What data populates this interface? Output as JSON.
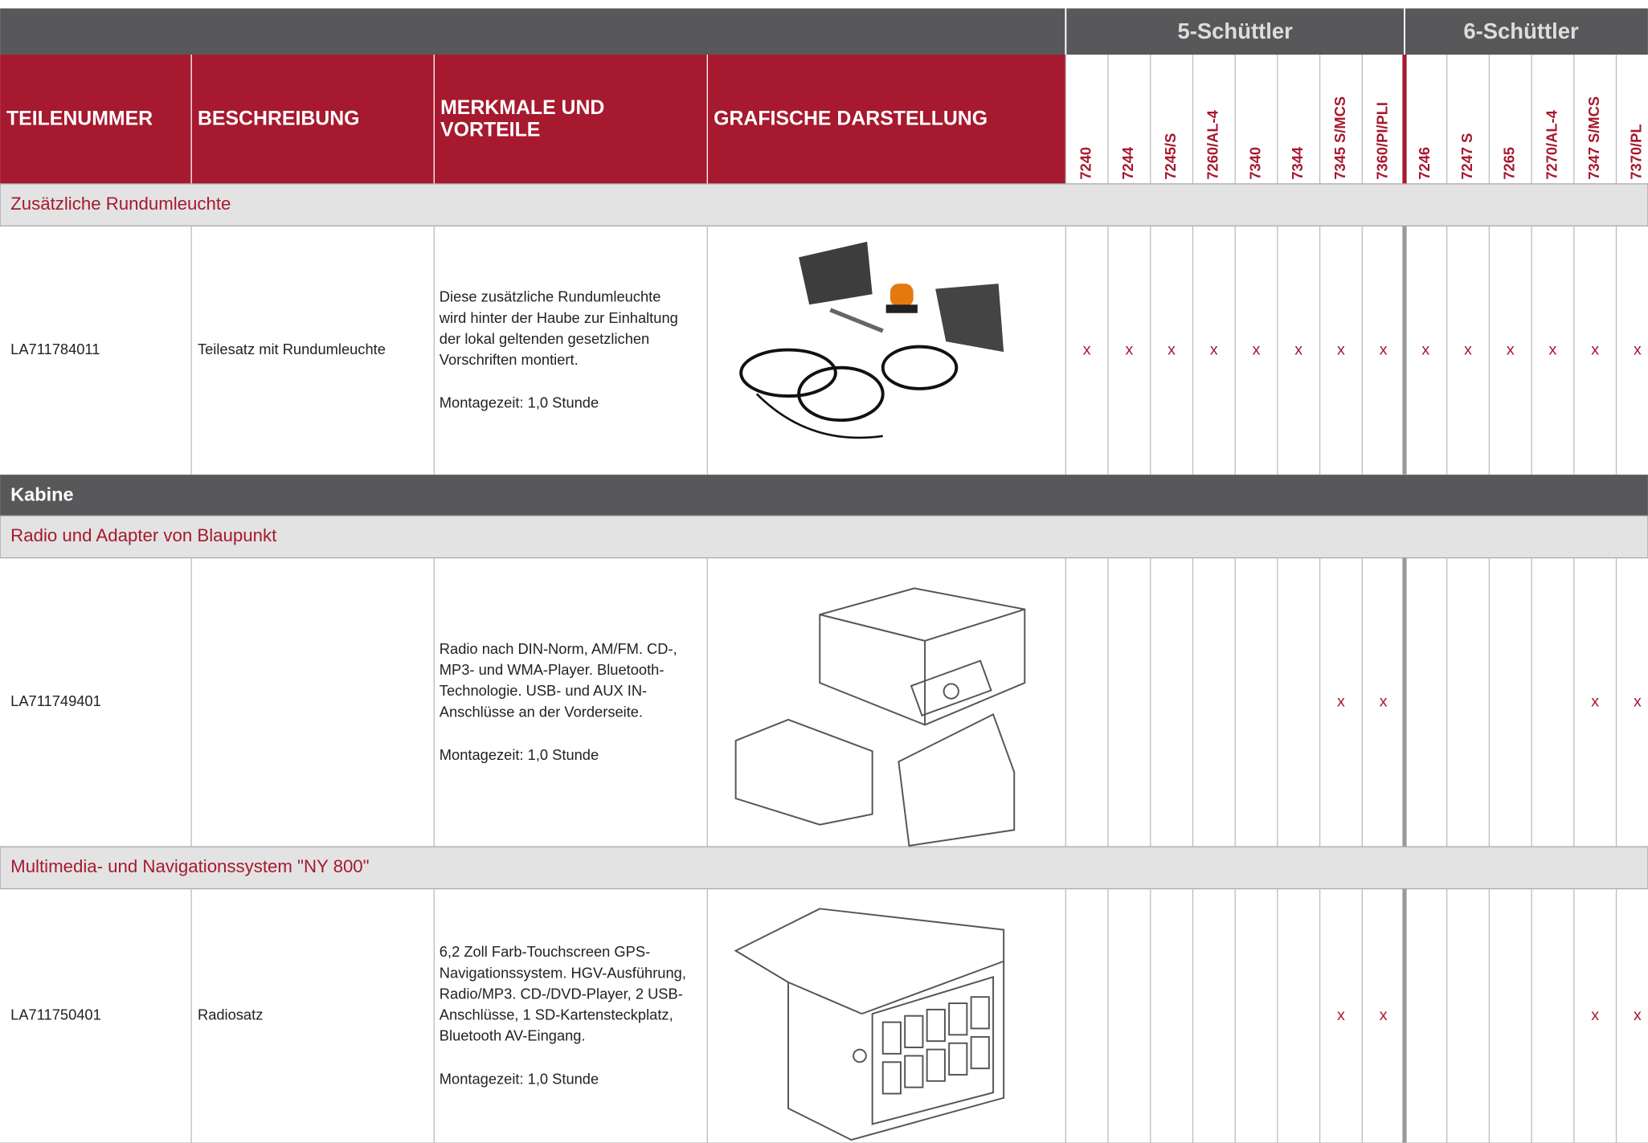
{
  "header": {
    "groups": [
      "5-Schüttler",
      "6-Schüttler"
    ],
    "columns": [
      [
        "TEILENUMMER"
      ],
      [
        "BESCHREIBUNG"
      ],
      [
        "MERKMALE UND",
        "VORTEILE"
      ],
      [
        "GRAFISCHE DARSTELLUNG"
      ]
    ],
    "models": [
      "7240",
      "7244",
      "7245/S",
      "7260/AL-4",
      "7340",
      "7344",
      "7345 S/MCS",
      "7360/PI/PLI",
      "7246",
      "7247 S",
      "7265",
      "7270/AL-4",
      "7347 S/MCS",
      "7370/PL"
    ]
  },
  "blocks": [
    {
      "subheading": "Zusätzliche Rundumleuchte"
    },
    {
      "row": {
        "part": "LA711784011",
        "description": "Teilesatz mit Rundumleuchte",
        "features": [
          "Diese zusätzliche Rundumleuchte",
          "wird hinter der Haube zur Einhaltung",
          "der lokal geltenden gesetzlichen",
          "Vorschriften montiert."
        ],
        "time": "Montagezeit: 1,0 Stunde",
        "marks": [
          "x",
          "x",
          "x",
          "x",
          "x",
          "x",
          "x",
          "x",
          "x",
          "x",
          "x",
          "x",
          "x",
          "x"
        ]
      }
    },
    {
      "heading": "Kabine"
    },
    {
      "subheading": "Radio und Adapter von Blaupunkt"
    },
    {
      "row": {
        "part": "LA711749401",
        "description": null,
        "features": [
          "Radio nach DIN-Norm, AM/FM. CD-,",
          "MP3- und WMA-Player. Bluetooth-",
          "Technologie. USB- und AUX IN-",
          "Anschlüsse an der Vorderseite."
        ],
        "time": "Montagezeit: 1,0 Stunde",
        "marks": [
          null,
          null,
          null,
          null,
          null,
          null,
          "x",
          "x",
          null,
          null,
          null,
          null,
          "x",
          "x"
        ]
      }
    },
    {
      "subheading": "Multimedia- und Navigationssystem \"NY 800\""
    },
    {
      "row": {
        "part": "LA711750401",
        "description": "Radiosatz",
        "features": [
          "6,2 Zoll Farb-Touchscreen GPS-",
          "Navigationssystem. HGV-Ausführung,",
          "Radio/MP3. CD-/DVD-Player, 2 USB-",
          "Anschlüsse, 1 SD-Kartensteckplatz,",
          "Bluetooth AV-Eingang."
        ],
        "time": "Montagezeit: 1,0 Stunde",
        "marks": [
          null,
          null,
          null,
          null,
          null,
          null,
          "x",
          "x",
          null,
          null,
          null,
          null,
          "x",
          "x"
        ]
      }
    }
  ]
}
